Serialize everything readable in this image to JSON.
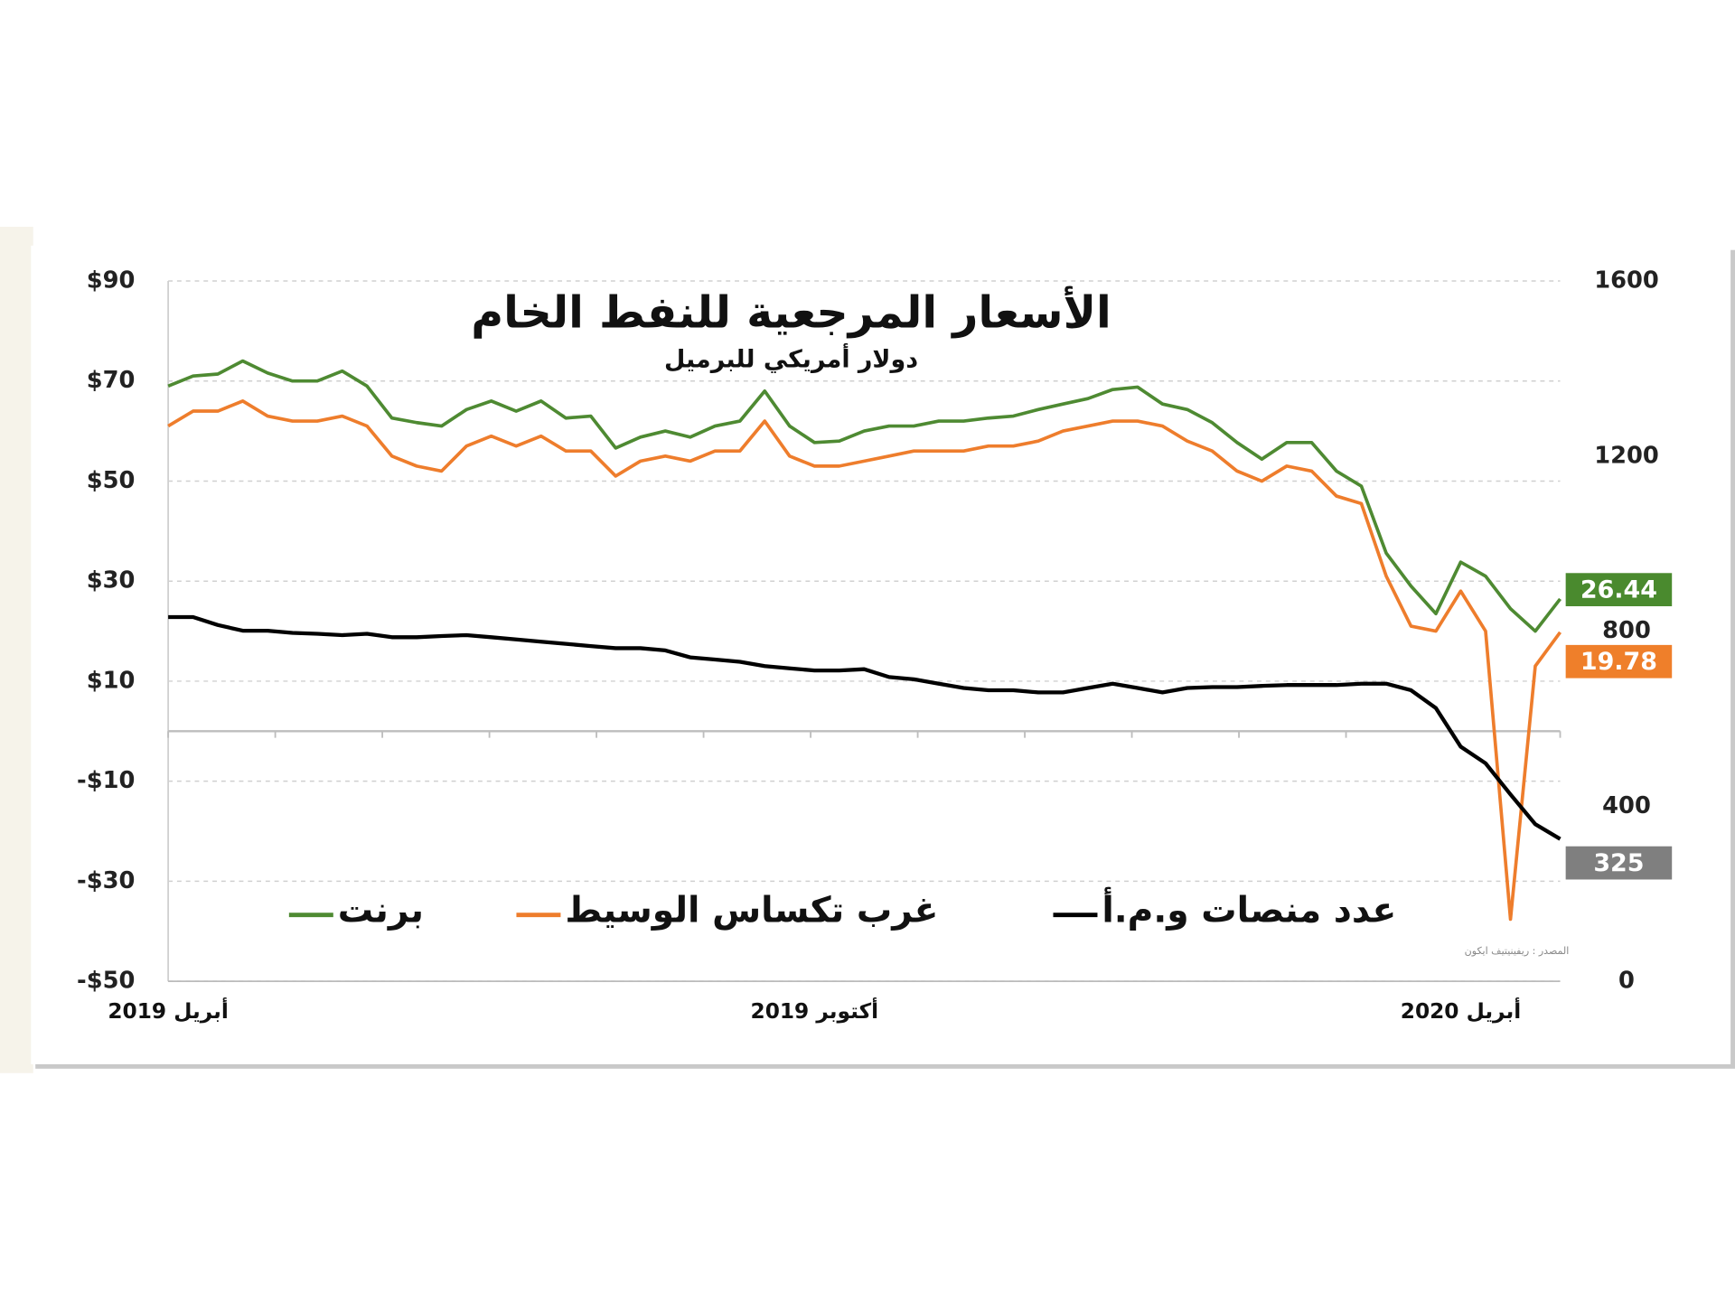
{
  "chart_data": {
    "type": "line",
    "title": "الأسعار المرجعية للنفط الخام",
    "subtitle": "دولار أمريكي للبرميل",
    "source": "المصدر : ريفينيتيف ايكون",
    "categories": [
      "أبريل 2019",
      null,
      null,
      null,
      null,
      null,
      null,
      null,
      null,
      null,
      null,
      null,
      null,
      null,
      null,
      null,
      null,
      null,
      null,
      null,
      null,
      null,
      null,
      null,
      null,
      null,
      "أكتوبر 2019",
      null,
      null,
      null,
      null,
      null,
      null,
      null,
      null,
      null,
      null,
      null,
      null,
      null,
      null,
      null,
      null,
      null,
      null,
      null,
      null,
      null,
      null,
      null,
      null,
      null,
      "أبريل 2020",
      null,
      null,
      null,
      null
    ],
    "series": [
      {
        "name": "برنت",
        "color": "#4e8a32",
        "label_color": "#4a8a2e",
        "values": [
          69,
          71,
          71.4,
          74,
          71.6,
          70,
          70,
          72,
          69,
          62.6,
          61.7,
          61,
          64.3,
          66,
          64,
          66,
          62.6,
          63,
          56.6,
          58.8,
          60,
          58.8,
          61,
          62,
          68,
          61,
          57.7,
          58,
          60,
          61,
          61,
          62,
          62,
          62.6,
          63,
          64.3,
          65.4,
          66.5,
          68.3,
          68.8,
          65.4,
          64.3,
          61.7,
          57.7,
          54.4,
          57.7,
          57.7,
          52,
          49,
          35.6,
          29,
          23.5,
          33.8,
          31,
          24.5,
          20,
          26.44
        ]
      },
      {
        "name": "غرب تكساس الوسيط",
        "color": "#ee7d2c",
        "label_color": "#ef7f2a",
        "values": [
          61,
          64,
          64,
          66,
          63,
          62,
          62,
          63,
          61,
          55,
          53,
          52,
          57,
          59,
          57,
          59,
          56,
          56,
          51,
          54,
          55,
          54,
          56,
          56,
          62,
          55,
          53,
          53,
          54,
          55,
          56,
          56,
          56,
          57,
          57,
          58,
          60,
          61,
          62,
          62,
          61,
          58,
          56,
          52,
          50,
          53,
          52,
          47,
          45.5,
          31,
          21,
          20,
          28,
          20,
          -37.6,
          13,
          19.78
        ]
      },
      {
        "name": "عدد منصات و.م.أ",
        "color": "#000000",
        "label_color": "#7f7f7f",
        "axis": "y2",
        "values": [
          832,
          832,
          814,
          801,
          801,
          796,
          794,
          791,
          794,
          786,
          786,
          789,
          791,
          786,
          781,
          776,
          771,
          766,
          761,
          761,
          756,
          740,
          735,
          730,
          720,
          715,
          710,
          710,
          713,
          695,
          690,
          680,
          670,
          665,
          665,
          660,
          660,
          670,
          680,
          670,
          660,
          670,
          672,
          672,
          675,
          677,
          677,
          677,
          680,
          680,
          665,
          624,
          536,
          498,
          427,
          359,
          325
        ]
      }
    ],
    "ylim": [
      -50,
      90
    ],
    "yticks": [
      {
        "value": 90,
        "label": "$90"
      },
      {
        "value": 70,
        "label": "$70"
      },
      {
        "value": 50,
        "label": "$50"
      },
      {
        "value": 30,
        "label": "$30"
      },
      {
        "value": 10,
        "label": "$10"
      },
      {
        "value": -10,
        "label": "-$10"
      },
      {
        "value": -30,
        "label": "-$30"
      },
      {
        "value": -50,
        "label": "-$50"
      }
    ],
    "y2lim": [
      0,
      1600
    ],
    "y2ticks": [
      1600,
      1200,
      800,
      400,
      0
    ],
    "grid": true
  }
}
